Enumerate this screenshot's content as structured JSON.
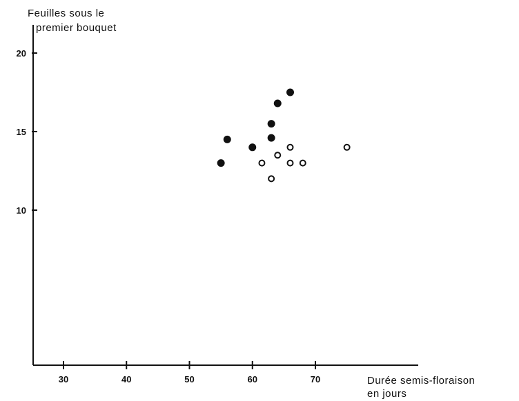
{
  "chart_data": {
    "type": "scatter",
    "title": "",
    "ylabel": [
      "Feuilles sous le",
      "premier bouquet"
    ],
    "xlabel": [
      "Durée semis-floraison",
      "en jours"
    ],
    "xlim": [
      25,
      75
    ],
    "ylim": [
      0,
      22
    ],
    "xticks": [
      30,
      40,
      50,
      60,
      70
    ],
    "yticks": [
      10,
      15,
      20
    ],
    "grid": false,
    "series": [
      {
        "marker": "filled-circle",
        "color": "#111111",
        "points": [
          {
            "x": 55,
            "y": 13
          },
          {
            "x": 56,
            "y": 14.5
          },
          {
            "x": 60,
            "y": 14
          },
          {
            "x": 63,
            "y": 14.6
          },
          {
            "x": 63,
            "y": 15.5
          },
          {
            "x": 64,
            "y": 16.8
          },
          {
            "x": 66,
            "y": 17.5
          }
        ]
      },
      {
        "marker": "open-circle",
        "color": "#111111",
        "points": [
          {
            "x": 61.5,
            "y": 13
          },
          {
            "x": 63,
            "y": 12
          },
          {
            "x": 64,
            "y": 13.5
          },
          {
            "x": 66,
            "y": 13
          },
          {
            "x": 66,
            "y": 14
          },
          {
            "x": 68,
            "y": 13
          },
          {
            "x": 75,
            "y": 14
          }
        ]
      }
    ]
  }
}
